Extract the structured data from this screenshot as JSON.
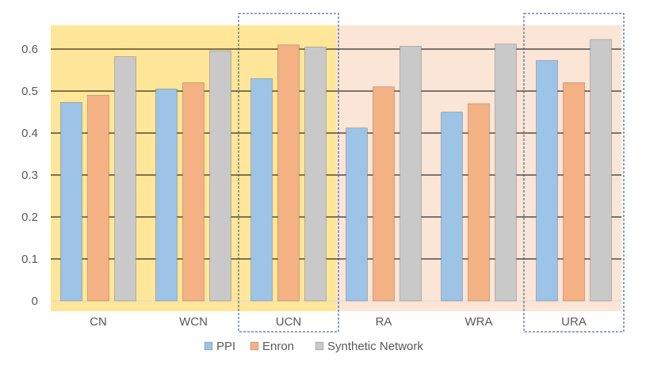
{
  "chart_data": {
    "type": "bar",
    "categories": [
      "CN",
      "WCN",
      "UCN",
      "RA",
      "WRA",
      "URA"
    ],
    "series": [
      {
        "name": "PPI",
        "values": [
          0.473,
          0.505,
          0.53,
          0.412,
          0.45,
          0.573
        ],
        "color": "#9DC3E6"
      },
      {
        "name": "Enron",
        "values": [
          0.49,
          0.52,
          0.61,
          0.51,
          0.47,
          0.52
        ],
        "color": "#F4B183"
      },
      {
        "name": "Synthetic Network",
        "values": [
          0.582,
          0.596,
          0.605,
          0.607,
          0.612,
          0.623
        ],
        "color": "#C9C9C9"
      }
    ],
    "y_ticks": [
      "0",
      "0.1",
      "0.2",
      "0.3",
      "0.4",
      "0.5",
      "0.6"
    ],
    "ylim": [
      0,
      0.65
    ],
    "title": "",
    "xlabel": "",
    "ylabel": "",
    "grid": true,
    "legend_position": "bottom",
    "background_bands": [
      {
        "categories": [
          "CN",
          "WCN",
          "UCN"
        ],
        "color": "#FFE699"
      },
      {
        "categories": [
          "RA",
          "WRA",
          "URA"
        ],
        "color": "#FBE5D6"
      }
    ],
    "highlighted_categories": [
      "UCN",
      "URA"
    ],
    "highlight_color": "#1F4E79"
  }
}
